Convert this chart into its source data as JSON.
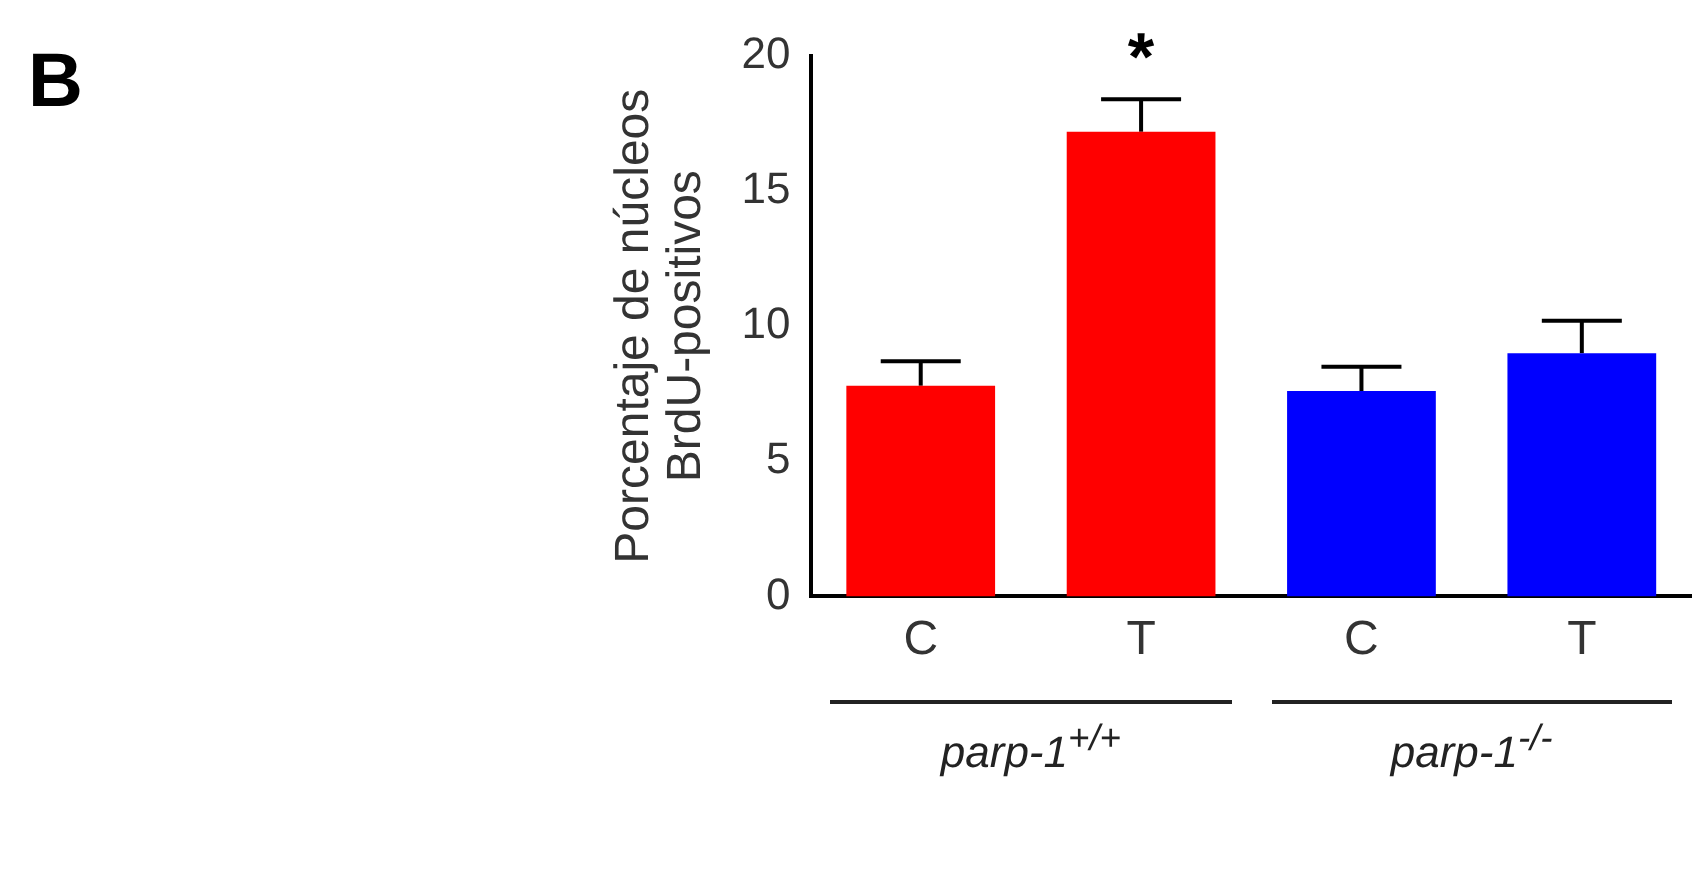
{
  "chart_data": {
    "type": "bar",
    "ylabel": "Porcentaje de núcleos\nBrdU-positivos",
    "categories": [
      "C",
      "T",
      "C",
      "T"
    ],
    "values": [
      7.8,
      17.2,
      7.6,
      9.0
    ],
    "errors": [
      0.9,
      1.2,
      0.9,
      1.2
    ],
    "colors": [
      "#ff0000",
      "#ff0000",
      "#0000ff",
      "#0000ff"
    ],
    "ylim": [
      0,
      20
    ],
    "yticks": [
      0,
      5,
      10,
      15,
      20
    ],
    "grid": false,
    "legend": false,
    "annotations": [
      {
        "text": "*",
        "x": "T",
        "y": 18.4
      },
      "B",
      "parp-1$^{+/+}$",
      "parp-1$^{-/-}$"
    ]
  }
}
